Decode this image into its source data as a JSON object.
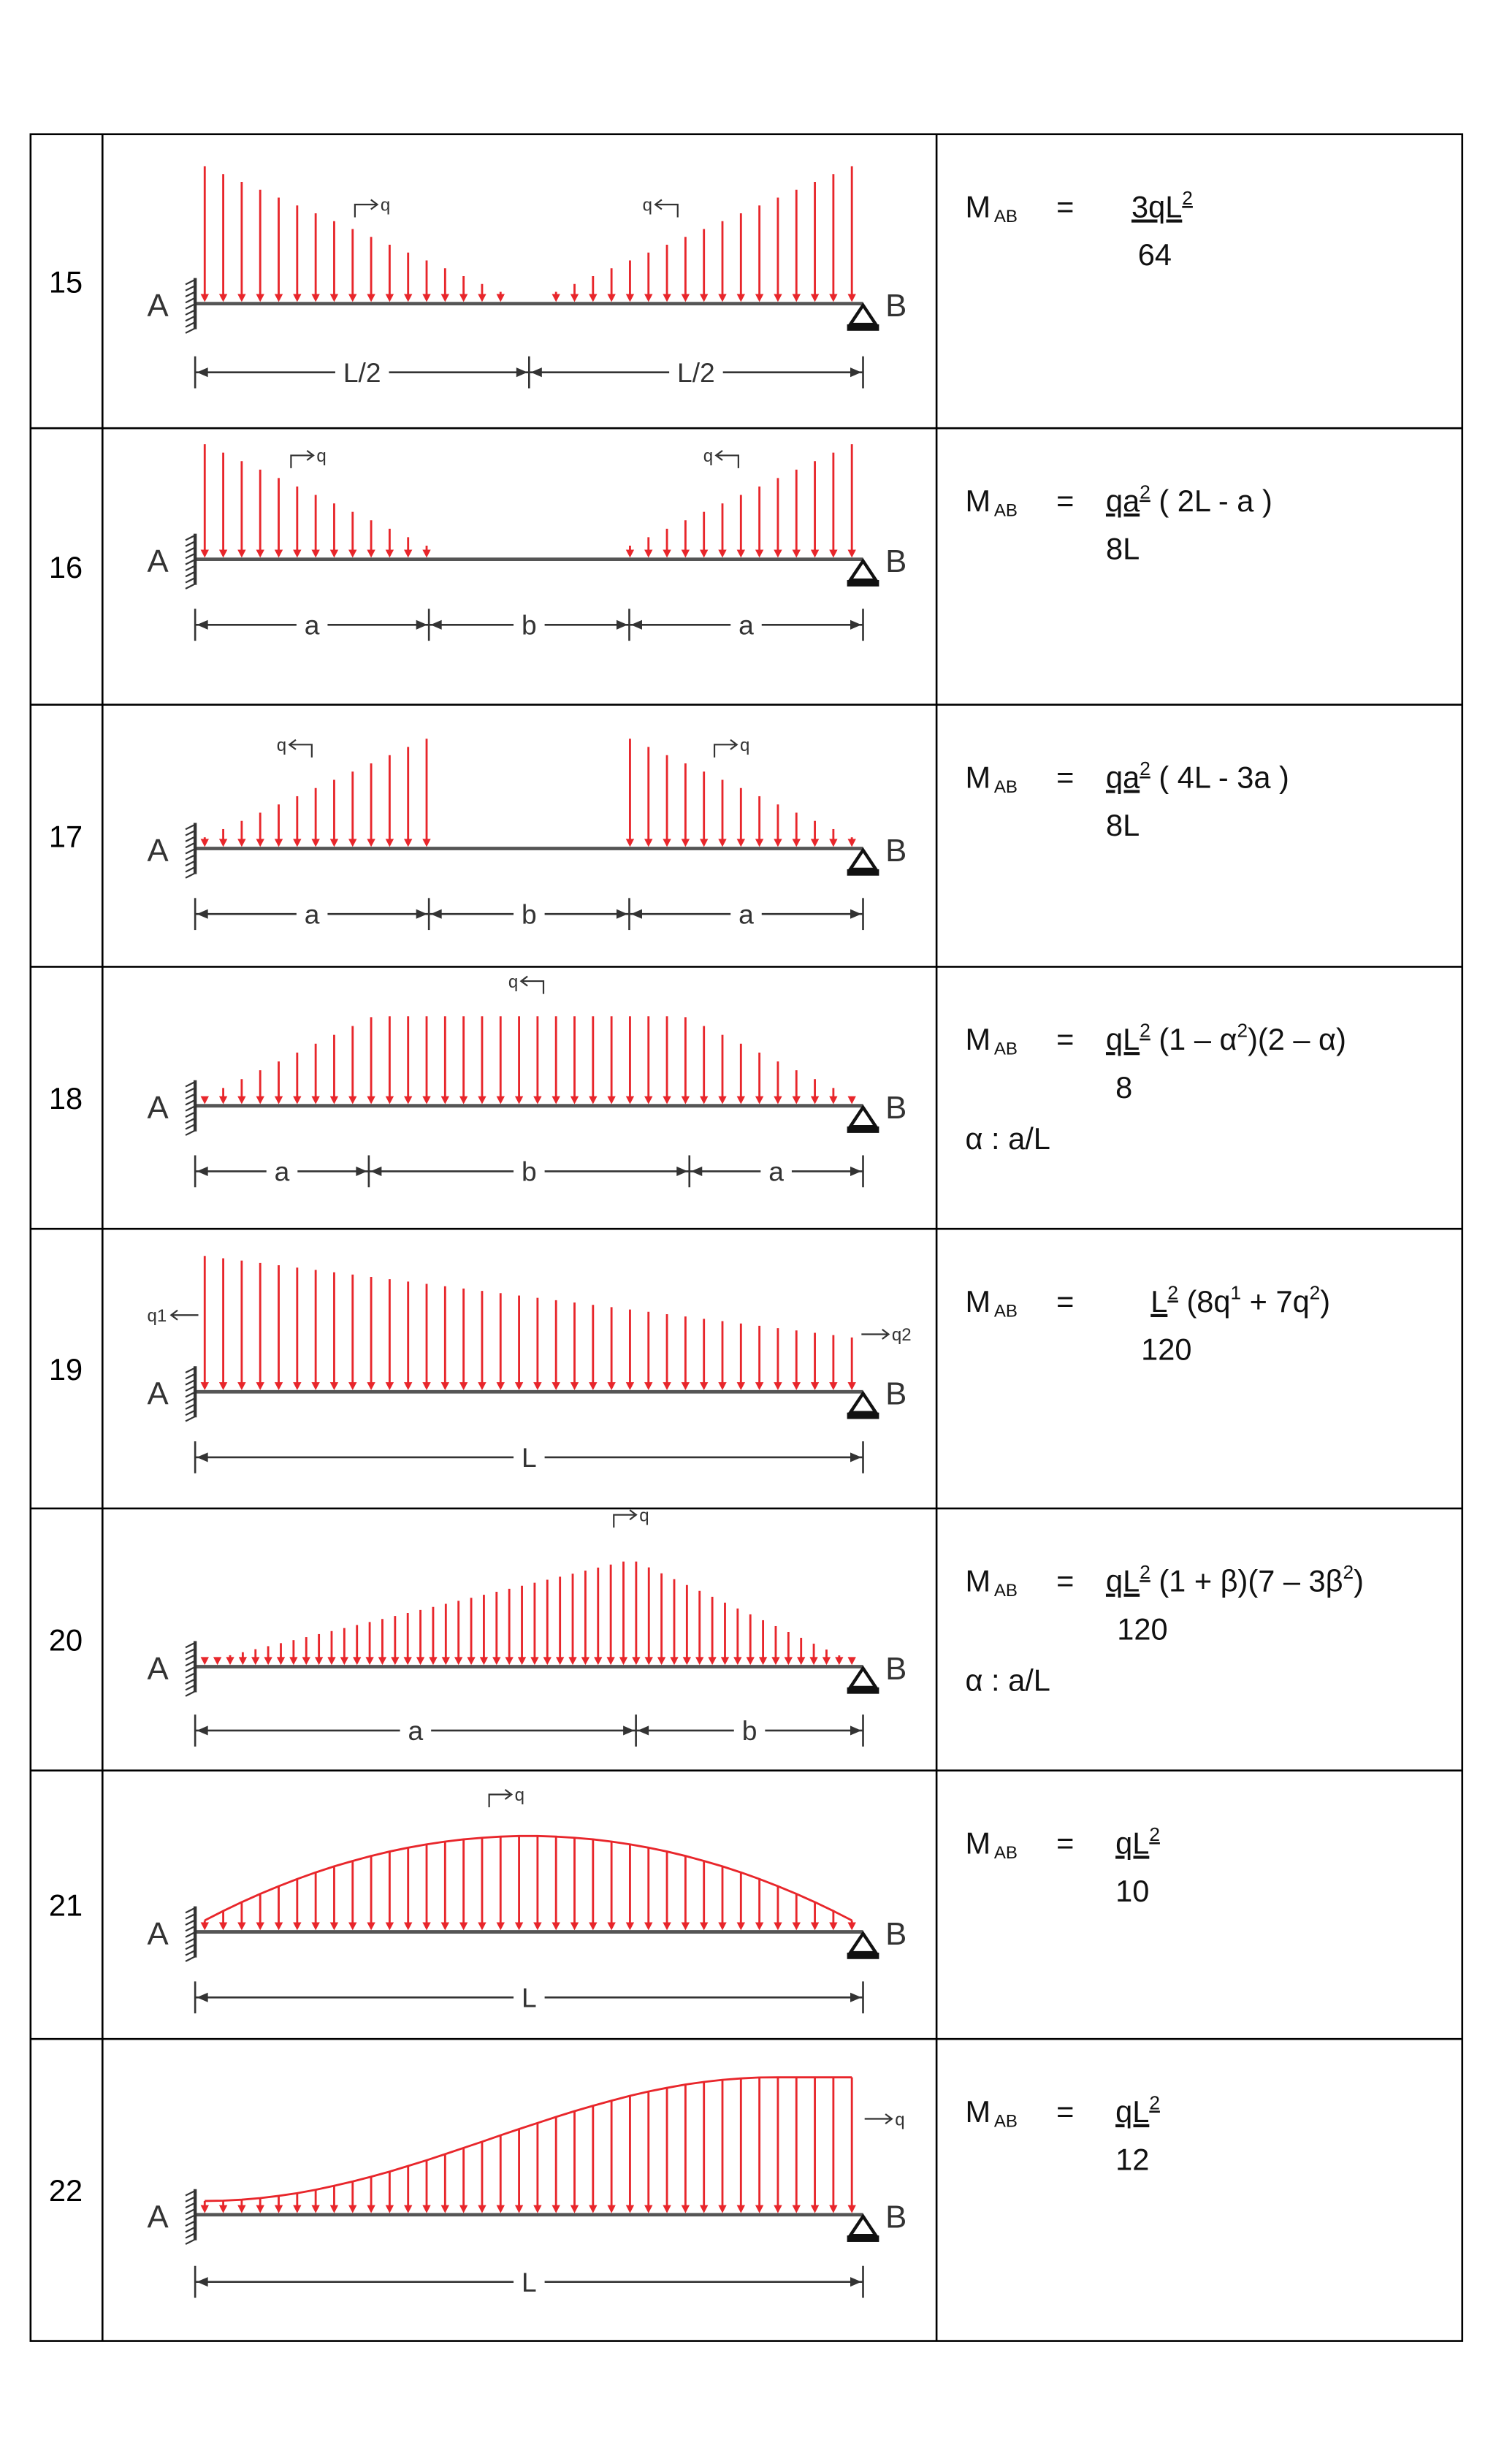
{
  "rows": [
    {
      "number": "15",
      "support_labels": [
        "A",
        "B"
      ],
      "load_labels": [
        "q",
        "q"
      ],
      "dims": [
        "L/2",
        "L/2"
      ],
      "formula": {
        "symbol": "M",
        "subscript": "AB",
        "equals": "=",
        "numerator": [
          {
            "text": "3qL",
            "underline": true
          },
          {
            "text": "2",
            "sup": true,
            "underline": true
          }
        ],
        "denominator": "64"
      }
    },
    {
      "number": "16",
      "support_labels": [
        "A",
        "B"
      ],
      "load_labels": [
        "q",
        "q"
      ],
      "dims": [
        "a",
        "b",
        "a"
      ],
      "formula": {
        "symbol": "M",
        "subscript": "AB",
        "equals": "=",
        "numerator": [
          {
            "text": "qa",
            "underline": true
          },
          {
            "text": "2",
            "sup": true,
            "underline": true
          },
          {
            "text": " ( 2L - a )"
          }
        ],
        "denominator": "8L"
      }
    },
    {
      "number": "17",
      "support_labels": [
        "A",
        "B"
      ],
      "load_labels": [
        "q",
        "q"
      ],
      "dims": [
        "a",
        "b",
        "a"
      ],
      "formula": {
        "symbol": "M",
        "subscript": "AB",
        "equals": "=",
        "numerator": [
          {
            "text": "qa",
            "underline": true
          },
          {
            "text": "2",
            "sup": true,
            "underline": true
          },
          {
            "text": " ( 4L - 3a )"
          }
        ],
        "denominator": "8L"
      }
    },
    {
      "number": "18",
      "support_labels": [
        "A",
        "B"
      ],
      "load_labels": [
        "q"
      ],
      "dims": [
        "a",
        "b",
        "a"
      ],
      "formula": {
        "symbol": "M",
        "subscript": "AB",
        "equals": "=",
        "numerator": [
          {
            "text": "qL",
            "underline": true
          },
          {
            "text": "2",
            "sup": true,
            "underline": true
          },
          {
            "text": " (1 – α"
          },
          {
            "text": "2",
            "sup": true
          },
          {
            "text": ")(2 – α)"
          }
        ],
        "denominator": "8",
        "note": "α : a/L"
      }
    },
    {
      "number": "19",
      "support_labels": [
        "A",
        "B"
      ],
      "load_labels": [
        "q1",
        "q2"
      ],
      "dims": [
        "L"
      ],
      "formula": {
        "symbol": "M",
        "subscript": "AB",
        "equals": "=",
        "numerator": [
          {
            "text": "L",
            "underline": true
          },
          {
            "text": "2",
            "sup": true,
            "underline": true
          },
          {
            "text": " (8q"
          },
          {
            "text": "1",
            "sup": true
          },
          {
            "text": " + 7q"
          },
          {
            "text": "2",
            "sup": true
          },
          {
            "text": ")"
          }
        ],
        "denominator": "120"
      }
    },
    {
      "number": "20",
      "support_labels": [
        "A",
        "B"
      ],
      "load_labels": [
        "q"
      ],
      "dims": [
        "a",
        "b"
      ],
      "formula": {
        "symbol": "M",
        "subscript": "AB",
        "equals": "=",
        "numerator": [
          {
            "text": "qL",
            "underline": true
          },
          {
            "text": "2",
            "sup": true,
            "underline": true
          },
          {
            "text": " (1 + β)(7 – 3β"
          },
          {
            "text": "2",
            "sup": true
          },
          {
            "text": ")"
          }
        ],
        "denominator": "120",
        "note": "α : a/L"
      }
    },
    {
      "number": "21",
      "support_labels": [
        "A",
        "B"
      ],
      "load_labels": [
        "q"
      ],
      "dims": [
        "L"
      ],
      "formula": {
        "symbol": "M",
        "subscript": "AB",
        "equals": "=",
        "numerator": [
          {
            "text": "qL",
            "underline": true
          },
          {
            "text": "2",
            "sup": true,
            "underline": true
          }
        ],
        "denominator": "10"
      }
    },
    {
      "number": "22",
      "support_labels": [
        "A",
        "B"
      ],
      "load_labels": [
        "q"
      ],
      "dims": [
        "L"
      ],
      "formula": {
        "symbol": "M",
        "subscript": "AB",
        "equals": "=",
        "numerator": [
          {
            "text": "qL",
            "underline": true
          },
          {
            "text": "2",
            "sup": true,
            "underline": true
          }
        ],
        "denominator": "12"
      }
    }
  ]
}
